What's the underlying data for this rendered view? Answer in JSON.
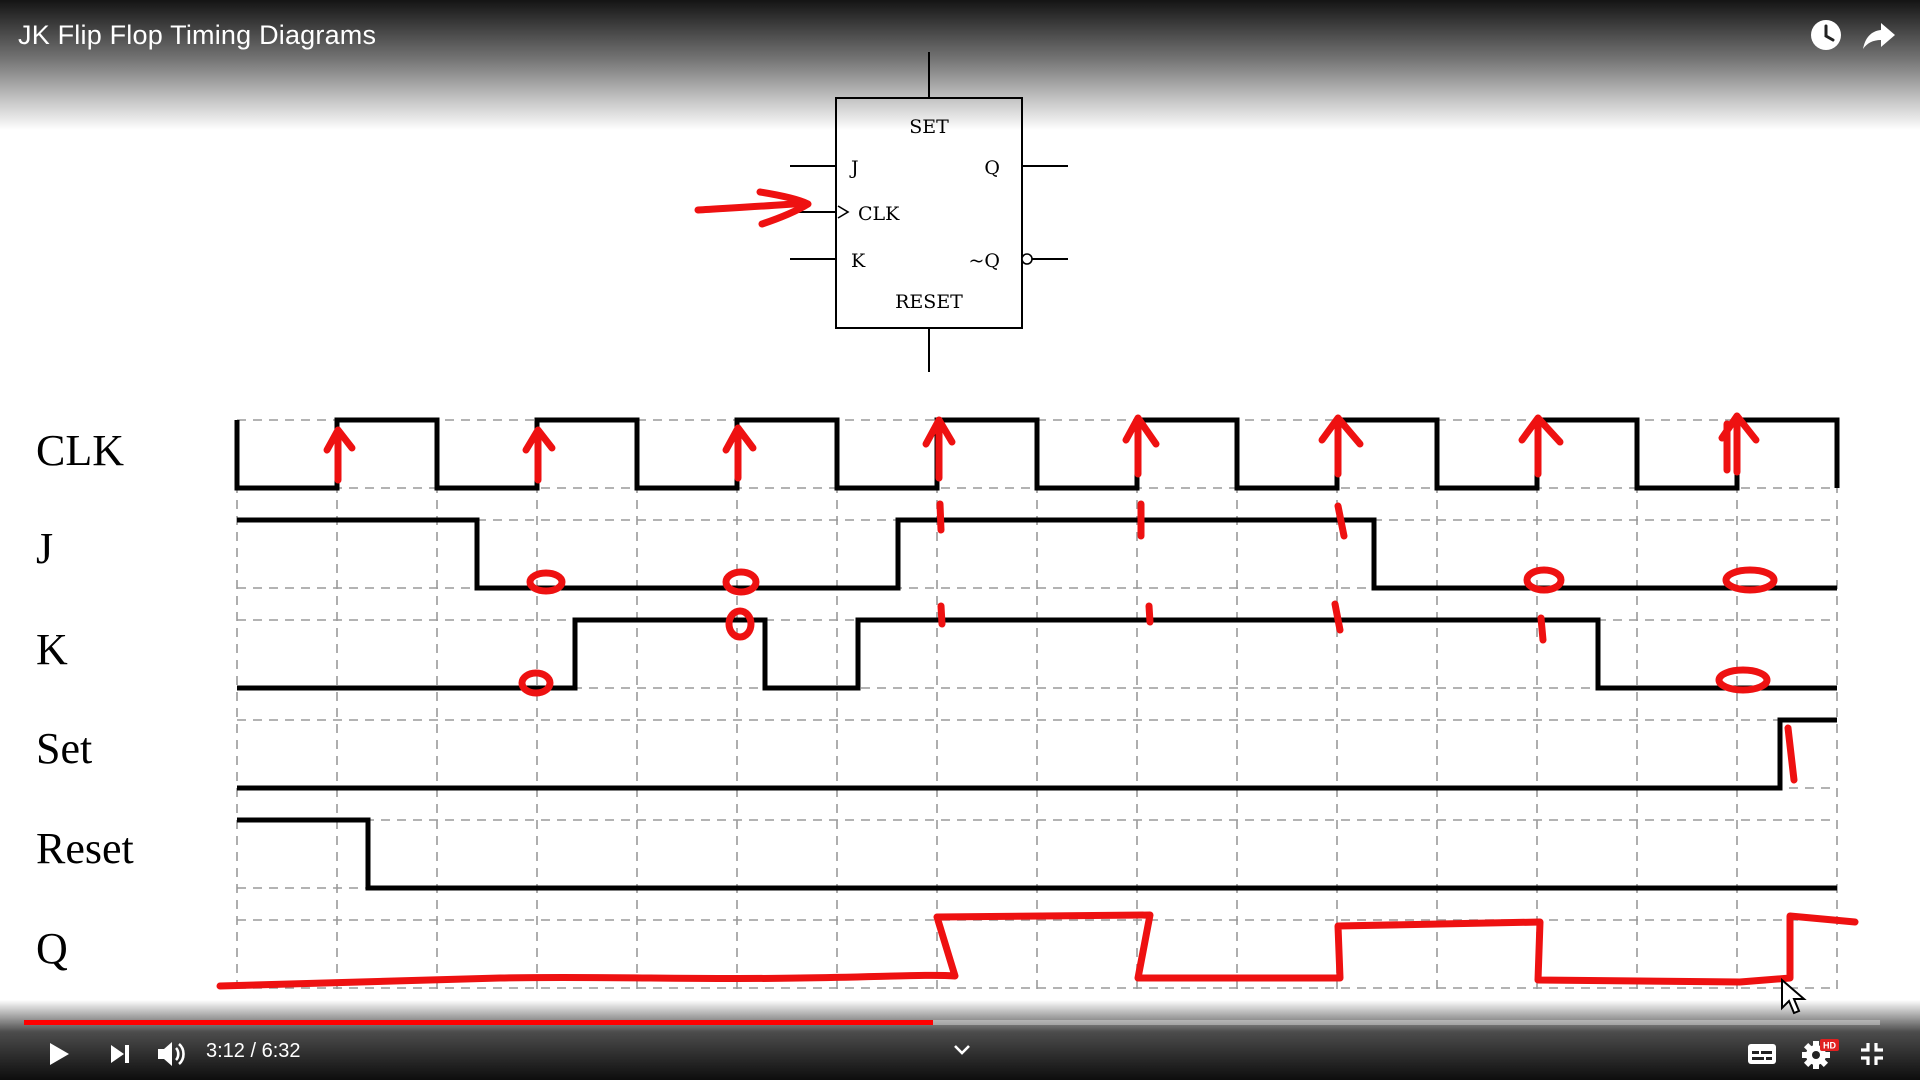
{
  "video": {
    "title": "JK Flip Flop Timing Diagrams",
    "progress": 0.4895
  },
  "time": {
    "current": "3:12",
    "separator": " / ",
    "total": "6:32"
  },
  "icons": {
    "watch_later": "clock-icon",
    "share": "share-arrow-icon",
    "play": "play-icon",
    "next": "next-icon",
    "volume": "volume-icon",
    "more": "chevron-down-icon",
    "subtitles": "subtitles-icon",
    "settings": "gear-icon",
    "hd_badge": "HD",
    "exit_fullscreen": "exit-fullscreen-icon"
  },
  "diagram": {
    "block": {
      "set": "SET",
      "reset": "RESET",
      "j": "J",
      "clk": "CLK",
      "k": "K",
      "q": "Q",
      "nq": "~Q"
    },
    "signals": [
      "CLK",
      "J",
      "K",
      "Set",
      "Reset",
      "Q"
    ]
  },
  "colors": {
    "accent": "#ff0000",
    "annotation": "#ee1111",
    "ink": "#000000",
    "grid": "#9a9a9a"
  }
}
